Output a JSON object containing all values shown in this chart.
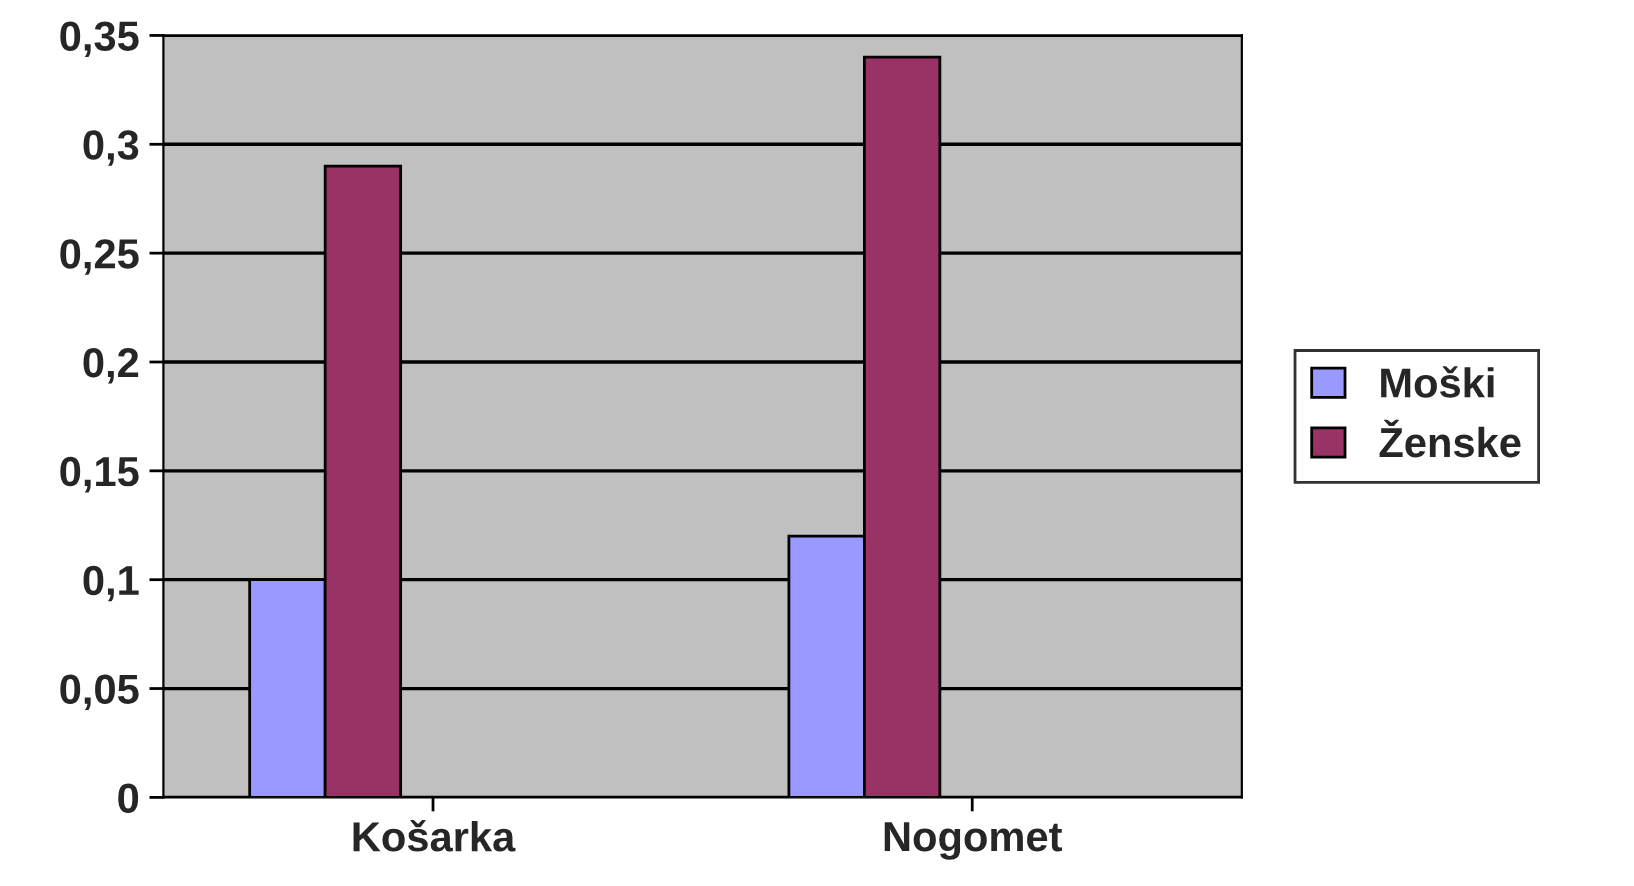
{
  "chart_data": {
    "type": "bar",
    "categories": [
      "Košarka",
      "Nogomet"
    ],
    "series": [
      {
        "name": "Moški",
        "color": "#9999ff",
        "values": [
          0.1,
          0.12
        ]
      },
      {
        "name": "Ženske",
        "color": "#993366",
        "values": [
          0.29,
          0.34
        ]
      }
    ],
    "ylim": [
      0,
      0.35
    ],
    "yticks": [
      {
        "value": 0,
        "label": "0"
      },
      {
        "value": 0.05,
        "label": "0,05"
      },
      {
        "value": 0.1,
        "label": "0,1"
      },
      {
        "value": 0.15,
        "label": "0,15"
      },
      {
        "value": 0.2,
        "label": "0,2"
      },
      {
        "value": 0.25,
        "label": "0,25"
      },
      {
        "value": 0.3,
        "label": "0,3"
      },
      {
        "value": 0.35,
        "label": "0,35"
      }
    ],
    "grid": "y",
    "legend": "right"
  }
}
